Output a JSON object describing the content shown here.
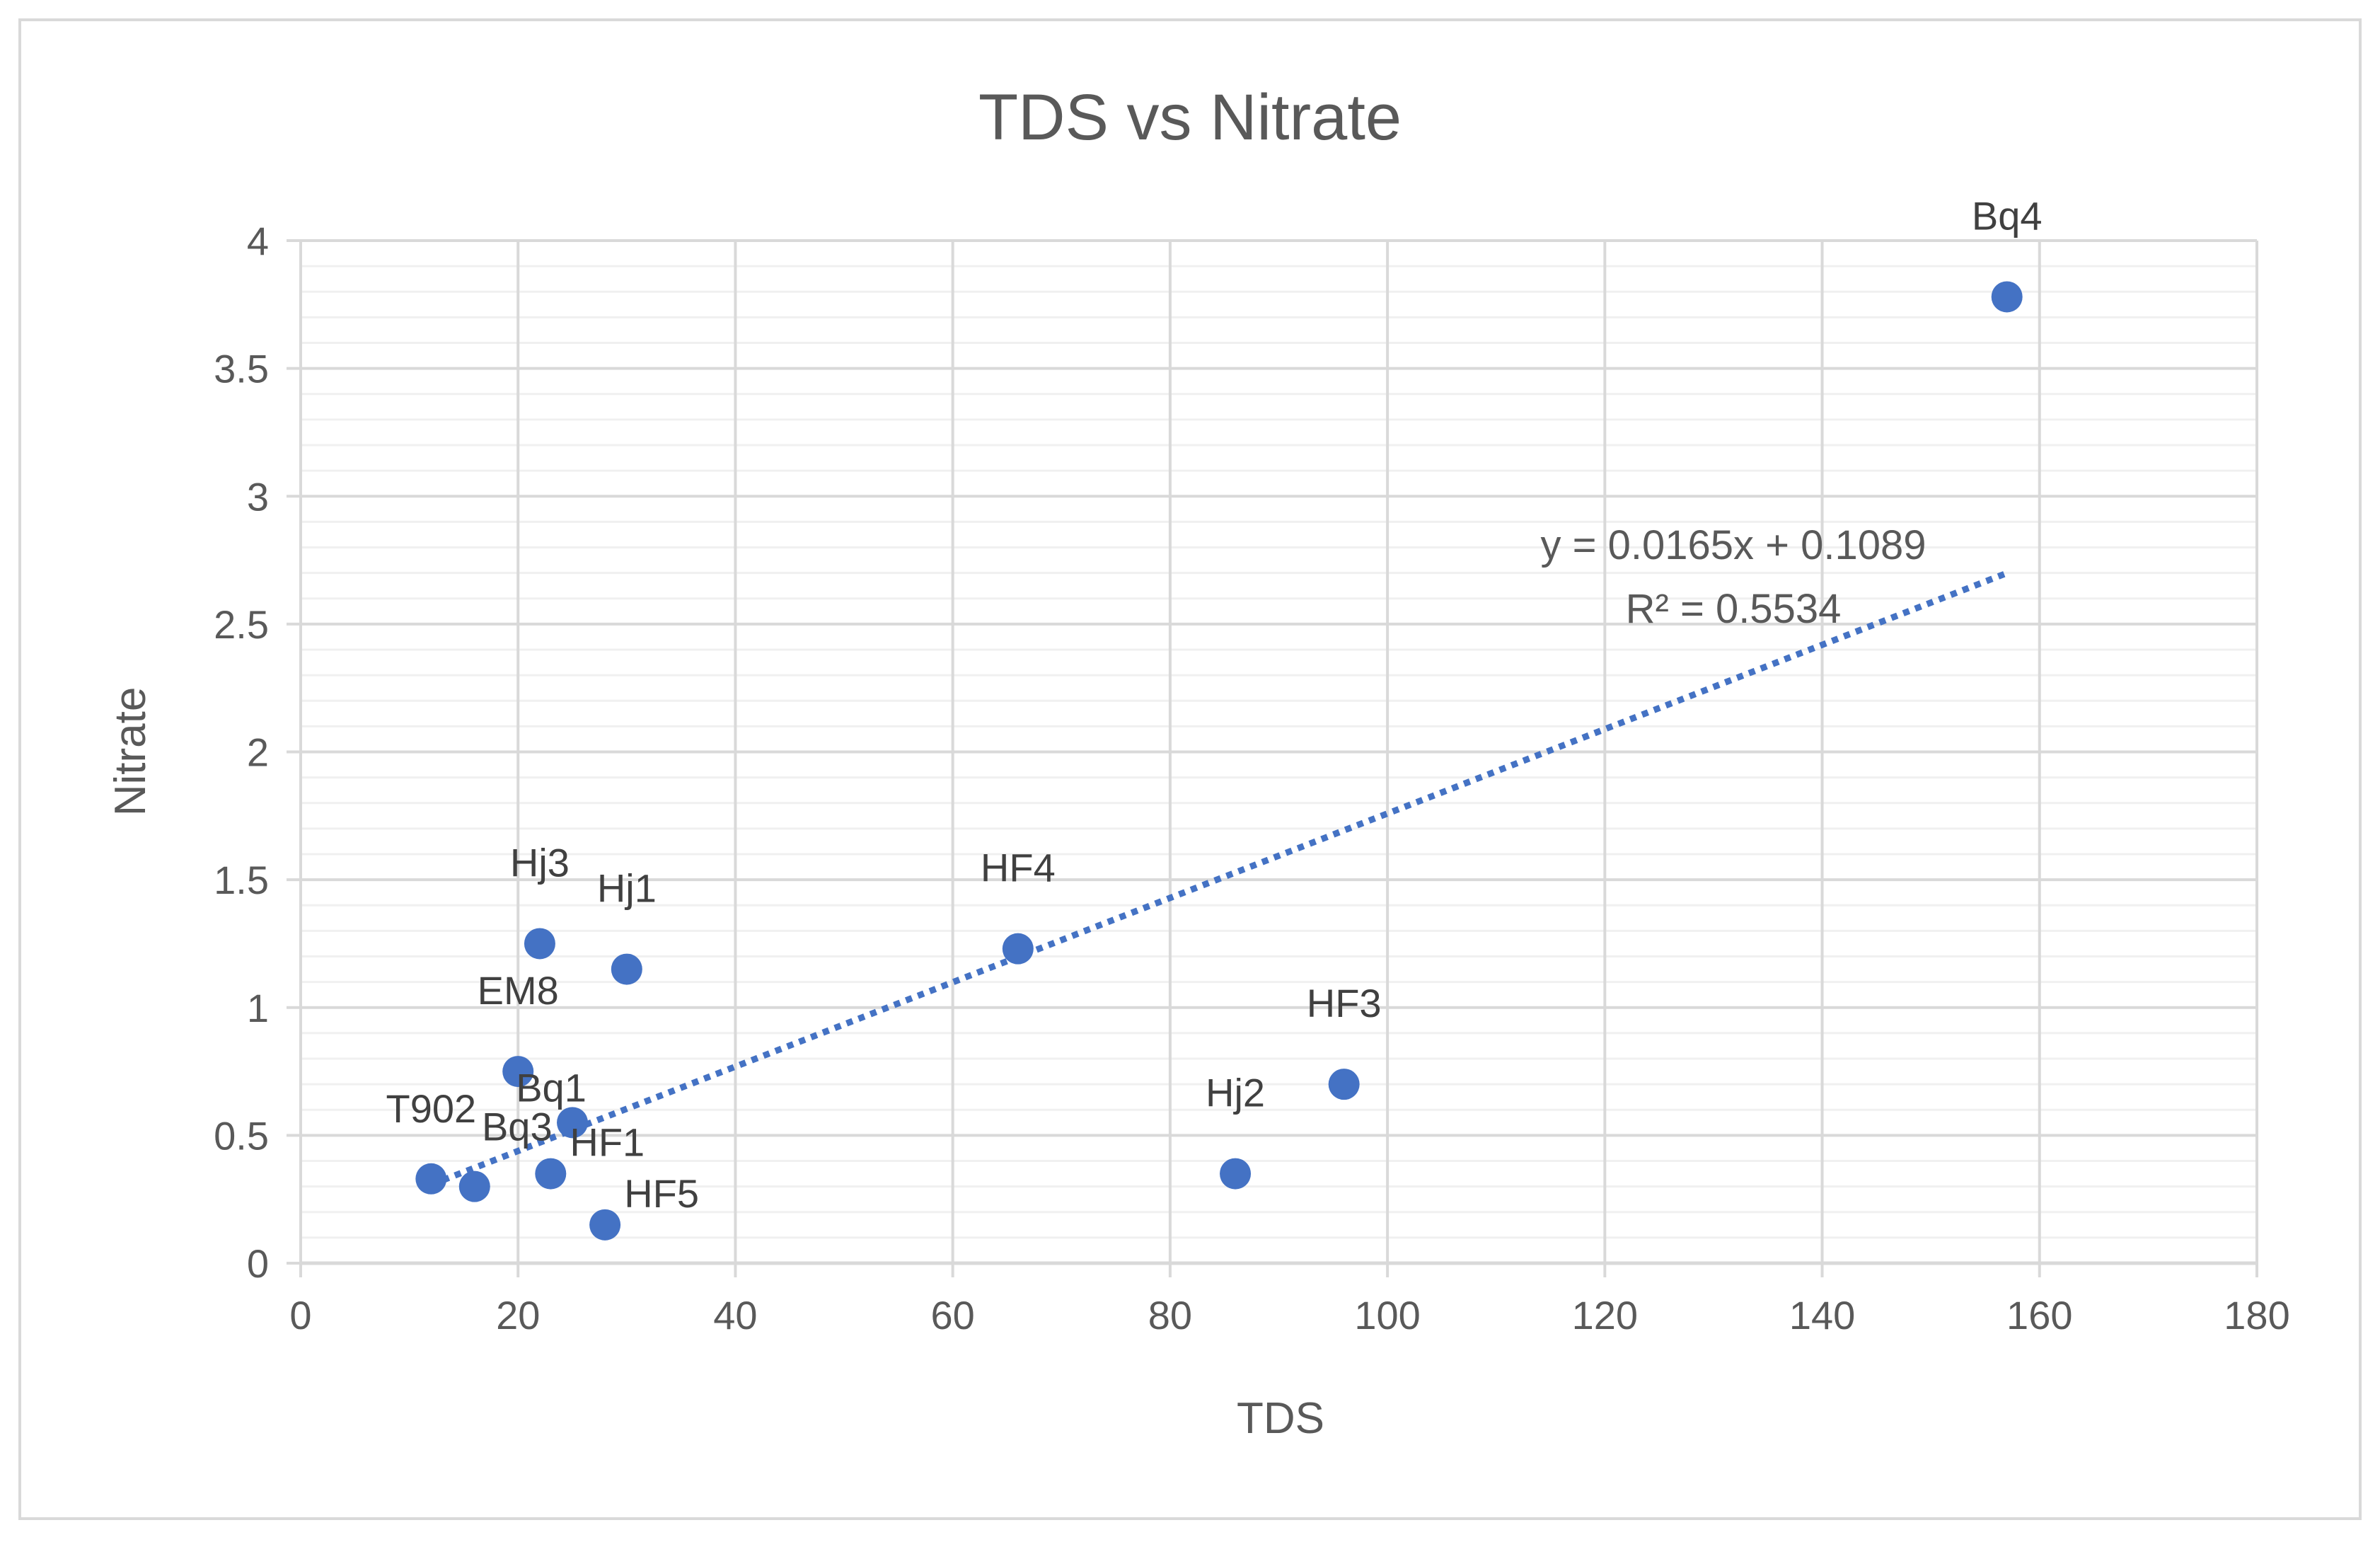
{
  "colors": {
    "background": "#ffffff",
    "border": "#d9d9d9",
    "grid_major": "#d9d9d9",
    "grid_minor": "#f0f0f0",
    "axis_text": "#595959",
    "title_text": "#595959",
    "label_text": "#404040",
    "marker": "#4472c4",
    "trendline": "#4472c4"
  },
  "chart_data": {
    "type": "scatter",
    "title": "TDS vs Nitrate",
    "xlabel": "TDS",
    "ylabel": "Nitrate",
    "xlim": [
      0,
      180
    ],
    "ylim": [
      0,
      4
    ],
    "xticks": [
      "0",
      "20",
      "40",
      "60",
      "80",
      "100",
      "120",
      "140",
      "160",
      "180"
    ],
    "yticks": [
      "0",
      "0.5",
      "1",
      "1.5",
      "2",
      "2.5",
      "3",
      "3.5",
      "4"
    ],
    "minor_y_step": 0.1,
    "points": [
      {
        "label": "T902",
        "x": 12,
        "y": 0.33
      },
      {
        "label": "Bq3",
        "x": 16,
        "y": 0.3
      },
      {
        "label": "EM8",
        "x": 20,
        "y": 0.75
      },
      {
        "label": "Hj3",
        "x": 22,
        "y": 1.25
      },
      {
        "label": "HF1",
        "x": 23,
        "y": 0.35
      },
      {
        "label": "Bq1",
        "x": 25,
        "y": 0.55
      },
      {
        "label": "HF5",
        "x": 28,
        "y": 0.15
      },
      {
        "label": "Hj1",
        "x": 30,
        "y": 1.15
      },
      {
        "label": "HF4",
        "x": 66,
        "y": 1.23
      },
      {
        "label": "Hj2",
        "x": 86,
        "y": 0.35
      },
      {
        "label": "HF3",
        "x": 96,
        "y": 0.7
      },
      {
        "label": "Bq4",
        "x": 157,
        "y": 3.78
      }
    ],
    "trendline": {
      "type": "linear",
      "slope": 0.0165,
      "intercept": 0.1089,
      "x_range": [
        12,
        157
      ],
      "equation": "y = 0.0165x + 0.1089",
      "r_squared": "R² = 0.5534"
    }
  }
}
